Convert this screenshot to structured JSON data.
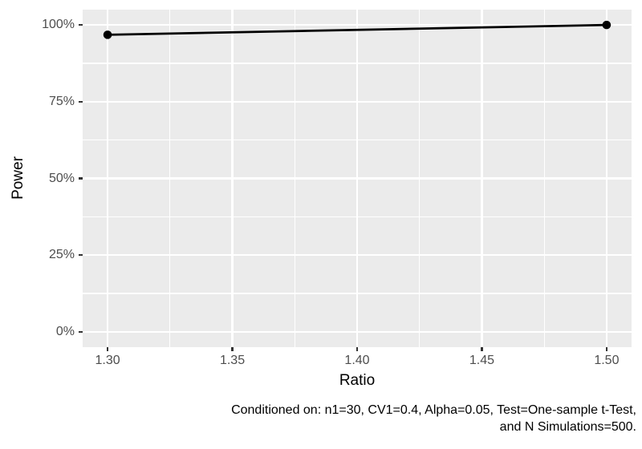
{
  "figure": {
    "background": "#FFFFFF",
    "panel_background": "#EBEBEB",
    "gridline_color": "#FFFFFF",
    "axis_text_color": "#4D4D4D",
    "tick_mark_color": "#333333",
    "title_color": "#000000",
    "series_color": "#000000"
  },
  "chart_data": {
    "type": "line",
    "title": "",
    "xlabel": "Ratio",
    "ylabel": "Power",
    "series": [
      {
        "name": "Power",
        "x": [
          1.3,
          1.5
        ],
        "y_percent": [
          96.8,
          100
        ]
      }
    ],
    "x_ticks": {
      "values": [
        1.3,
        1.35,
        1.4,
        1.45,
        1.5
      ],
      "labels": [
        "1.30",
        "1.35",
        "1.40",
        "1.45",
        "1.50"
      ]
    },
    "y_ticks": {
      "values_percent": [
        0,
        25,
        50,
        75,
        100
      ],
      "labels": [
        "0%",
        "25%",
        "50%",
        "75%",
        "100%"
      ]
    },
    "x_minor": [
      1.325,
      1.375,
      1.425,
      1.475
    ],
    "y_minor_percent": [
      12.5,
      37.5,
      62.5,
      87.5
    ],
    "xlim": [
      1.29,
      1.51
    ],
    "ylim_percent": [
      -5,
      105
    ],
    "grid": true,
    "legend_position": "none"
  },
  "caption": {
    "line1": "Conditioned on: n1=30, CV1=0.4, Alpha=0.05, Test=One-sample t-Test,",
    "line2": "and N Simulations=500."
  }
}
